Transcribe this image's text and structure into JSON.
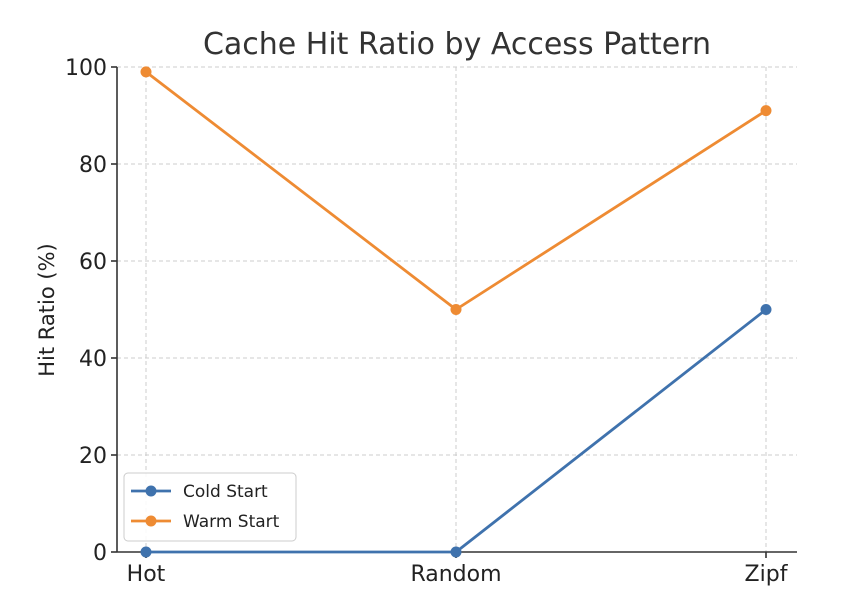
{
  "chart_data": {
    "type": "line",
    "title": "Cache Hit Ratio by Access Pattern",
    "xlabel": "",
    "ylabel": "Hit Ratio (%)",
    "categories": [
      "Hot",
      "Random",
      "Zipf"
    ],
    "ylim": [
      0,
      100
    ],
    "yticks": [
      0,
      20,
      40,
      60,
      80,
      100
    ],
    "grid": true,
    "legend_position": "bottom-left",
    "series": [
      {
        "name": "Cold Start",
        "values": [
          0,
          0,
          50
        ],
        "color": "#3f72ad"
      },
      {
        "name": "Warm Start",
        "values": [
          99,
          50,
          91
        ],
        "color": "#ee8b33"
      }
    ]
  }
}
